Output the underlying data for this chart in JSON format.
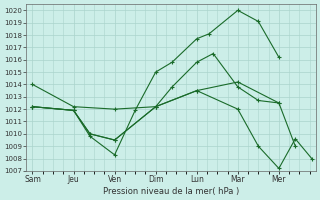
{
  "xlabel": "Pression niveau de la mer( hPa )",
  "bg_color": "#cceee8",
  "grid_color": "#aad4cc",
  "line_color": "#1a6b2a",
  "ylim": [
    1007,
    1020.5
  ],
  "yticks": [
    1007,
    1008,
    1009,
    1010,
    1011,
    1012,
    1013,
    1014,
    1015,
    1016,
    1017,
    1018,
    1019,
    1020
  ],
  "xtick_labels": [
    "Sam",
    "Jeu",
    "Ven",
    "Dim",
    "Lun",
    "Mar",
    "Mer"
  ],
  "xtick_pos": [
    0,
    1,
    2,
    3,
    4,
    5,
    6
  ],
  "xlim": [
    -0.15,
    6.9
  ],
  "lines": [
    {
      "x": [
        0,
        1,
        2,
        3,
        4,
        5,
        6
      ],
      "y": [
        1014.0,
        1012.2,
        1012.0,
        1012.2,
        1013.5,
        1014.2,
        1012.5
      ]
    },
    {
      "x": [
        0,
        1,
        1.4,
        2,
        2.5,
        3,
        3.4,
        4,
        4.3,
        5,
        5.5,
        6
      ],
      "y": [
        1012.2,
        1011.9,
        1009.8,
        1008.3,
        1011.9,
        1015.0,
        1015.8,
        1017.7,
        1018.1,
        1020.0,
        1019.1,
        1016.2
      ]
    },
    {
      "x": [
        0,
        1,
        1.4,
        2,
        3,
        3.4,
        4,
        4.4,
        5,
        5.5,
        6,
        6.4
      ],
      "y": [
        1012.2,
        1011.9,
        1010.0,
        1009.5,
        1012.2,
        1013.8,
        1015.8,
        1016.5,
        1013.8,
        1012.7,
        1012.5,
        1009.0
      ]
    },
    {
      "x": [
        0,
        1,
        1.4,
        2,
        3,
        4,
        5,
        5.5,
        6,
        6.4,
        6.8
      ],
      "y": [
        1012.2,
        1011.9,
        1010.0,
        1009.5,
        1012.2,
        1013.5,
        1012.0,
        1009.0,
        1007.2,
        1009.6,
        1008.0
      ]
    }
  ]
}
